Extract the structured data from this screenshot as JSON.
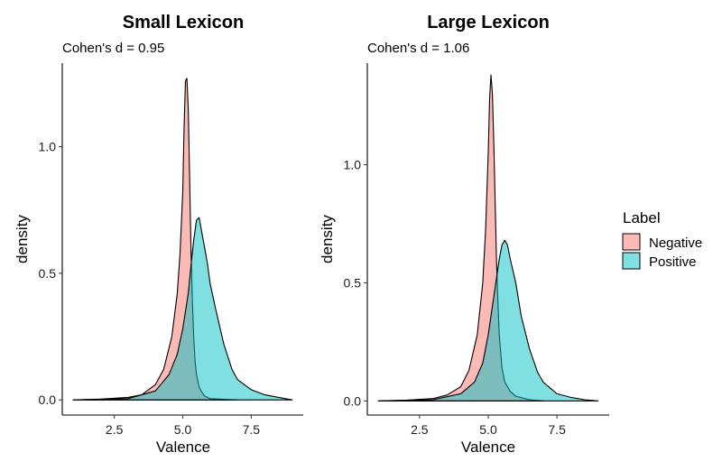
{
  "chart_data": [
    {
      "type": "area",
      "title": "Small Lexicon",
      "subtitle": "Cohen's d = 0.95",
      "xlabel": "Valence",
      "ylabel": "density",
      "xlim": [
        0.6,
        9.4
      ],
      "ylim": [
        -0.06,
        1.33
      ],
      "xticks": [
        2.5,
        5.0,
        7.5
      ],
      "xtick_labels": [
        "2.5",
        "5.0",
        "7.5"
      ],
      "yticks": [
        0.0,
        0.5,
        1.0
      ],
      "ytick_labels": [
        "0.0",
        "0.5",
        "1.0"
      ],
      "series": [
        {
          "name": "Negative",
          "color": "#F8766D",
          "x": [
            1.0,
            2.0,
            3.0,
            3.5,
            4.0,
            4.3,
            4.6,
            4.8,
            4.9,
            5.0,
            5.05,
            5.1,
            5.15,
            5.2,
            5.25,
            5.3,
            5.35,
            5.4,
            5.45,
            5.5,
            5.6,
            5.7,
            5.8,
            6.0,
            6.5,
            7.0
          ],
          "y": [
            0.0,
            0.003,
            0.01,
            0.02,
            0.06,
            0.12,
            0.25,
            0.42,
            0.58,
            0.82,
            1.08,
            1.26,
            1.27,
            1.15,
            0.88,
            0.6,
            0.4,
            0.25,
            0.15,
            0.1,
            0.05,
            0.03,
            0.015,
            0.005,
            0.002,
            0.0
          ]
        },
        {
          "name": "Positive",
          "color": "#00BFC4",
          "x": [
            1.0,
            3.0,
            4.0,
            4.5,
            4.8,
            5.0,
            5.2,
            5.3,
            5.4,
            5.5,
            5.6,
            5.7,
            5.8,
            5.9,
            6.0,
            6.2,
            6.5,
            6.8,
            7.0,
            7.5,
            8.0,
            8.5,
            9.0
          ],
          "y": [
            0.0,
            0.005,
            0.035,
            0.1,
            0.18,
            0.28,
            0.42,
            0.53,
            0.63,
            0.71,
            0.72,
            0.66,
            0.6,
            0.54,
            0.46,
            0.36,
            0.22,
            0.12,
            0.08,
            0.04,
            0.02,
            0.01,
            0.0
          ]
        }
      ]
    },
    {
      "type": "area",
      "title": "Large Lexicon",
      "subtitle": "Cohen's d = 1.06",
      "xlabel": "Valence",
      "ylabel": "density",
      "xlim": [
        0.6,
        9.4
      ],
      "ylim": [
        -0.06,
        1.43
      ],
      "xticks": [
        2.5,
        5.0,
        7.5
      ],
      "xtick_labels": [
        "2.5",
        "5.0",
        "7.5"
      ],
      "yticks": [
        0.0,
        0.5,
        1.0
      ],
      "ytick_labels": [
        "0.0",
        "0.5",
        "1.0"
      ],
      "series": [
        {
          "name": "Negative",
          "color": "#F8766D",
          "x": [
            1.0,
            2.0,
            3.0,
            3.5,
            4.0,
            4.3,
            4.6,
            4.8,
            4.9,
            5.0,
            5.05,
            5.1,
            5.15,
            5.2,
            5.25,
            5.3,
            5.35,
            5.4,
            5.5,
            5.6,
            5.8,
            6.0,
            6.5,
            7.0
          ],
          "y": [
            0.0,
            0.003,
            0.01,
            0.025,
            0.06,
            0.13,
            0.28,
            0.5,
            0.72,
            1.05,
            1.28,
            1.38,
            1.3,
            1.1,
            0.85,
            0.6,
            0.42,
            0.28,
            0.14,
            0.08,
            0.04,
            0.02,
            0.005,
            0.0
          ]
        },
        {
          "name": "Positive",
          "color": "#00BFC4",
          "x": [
            1.0,
            3.0,
            4.0,
            4.5,
            4.8,
            5.0,
            5.2,
            5.4,
            5.5,
            5.6,
            5.7,
            5.8,
            6.0,
            6.2,
            6.5,
            6.8,
            7.0,
            7.5,
            8.0,
            8.5,
            9.0
          ],
          "y": [
            0.0,
            0.005,
            0.03,
            0.08,
            0.16,
            0.28,
            0.44,
            0.6,
            0.66,
            0.68,
            0.66,
            0.6,
            0.5,
            0.36,
            0.22,
            0.12,
            0.08,
            0.03,
            0.015,
            0.005,
            0.0
          ]
        }
      ]
    }
  ],
  "legend": {
    "title": "Label",
    "items": [
      {
        "label": "Negative",
        "color": "#F8766D"
      },
      {
        "label": "Positive",
        "color": "#00BFC4"
      }
    ]
  }
}
